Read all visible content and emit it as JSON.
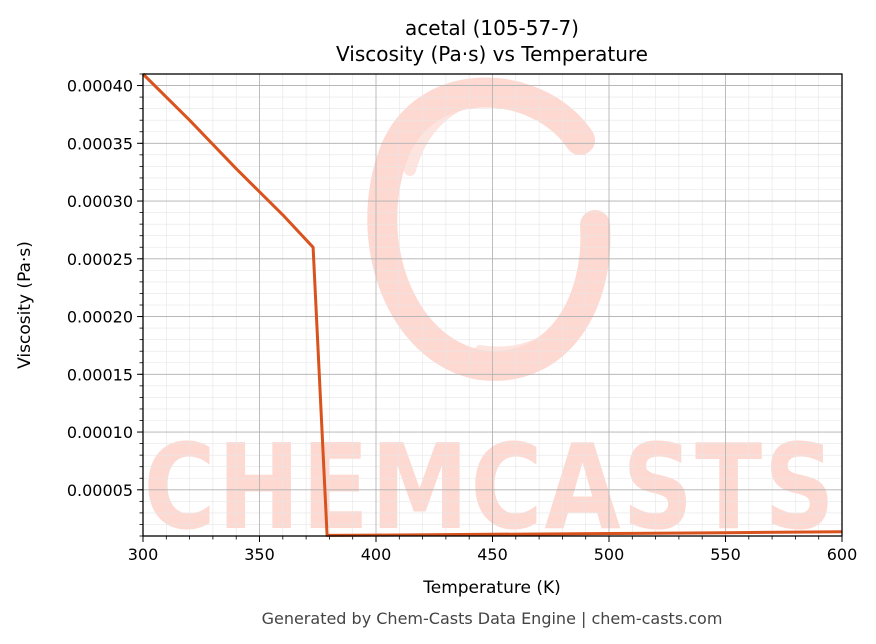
{
  "chart_data": {
    "type": "line",
    "title": "acetal (105-57-7)",
    "subtitle": "Viscosity (Pa·s) vs Temperature",
    "xlabel": "Temperature (K)",
    "ylabel": "Viscosity (Pa·s)",
    "xlim": [
      300,
      600
    ],
    "ylim": [
      1e-05,
      0.00041
    ],
    "x_ticks": [
      300,
      350,
      400,
      450,
      500,
      550,
      600
    ],
    "x_tick_labels": [
      "300",
      "350",
      "400",
      "450",
      "500",
      "550",
      "600"
    ],
    "y_ticks": [
      5e-05,
      0.0001,
      0.00015,
      0.0002,
      0.00025,
      0.0003,
      0.00035,
      0.0004
    ],
    "y_tick_labels": [
      "0.00005",
      "0.00010",
      "0.00015",
      "0.00020",
      "0.00025",
      "0.00030",
      "0.00035",
      "0.00040"
    ],
    "grid": true,
    "series": [
      {
        "color": "#d9531e",
        "x": [
          300,
          320,
          340,
          360,
          373,
          379,
          400,
          450,
          500,
          550,
          600
        ],
        "y": [
          0.00041,
          0.00037,
          0.000328,
          0.000288,
          0.00026,
          1.05e-05,
          1.08e-05,
          1.15e-05,
          1.22e-05,
          1.29e-05,
          1.36e-05
        ]
      }
    ]
  },
  "watermark": {
    "text": "CHEMCASTS",
    "color": "#fdd9d2"
  },
  "footer": "Generated by Chem-Casts Data Engine | chem-casts.com"
}
